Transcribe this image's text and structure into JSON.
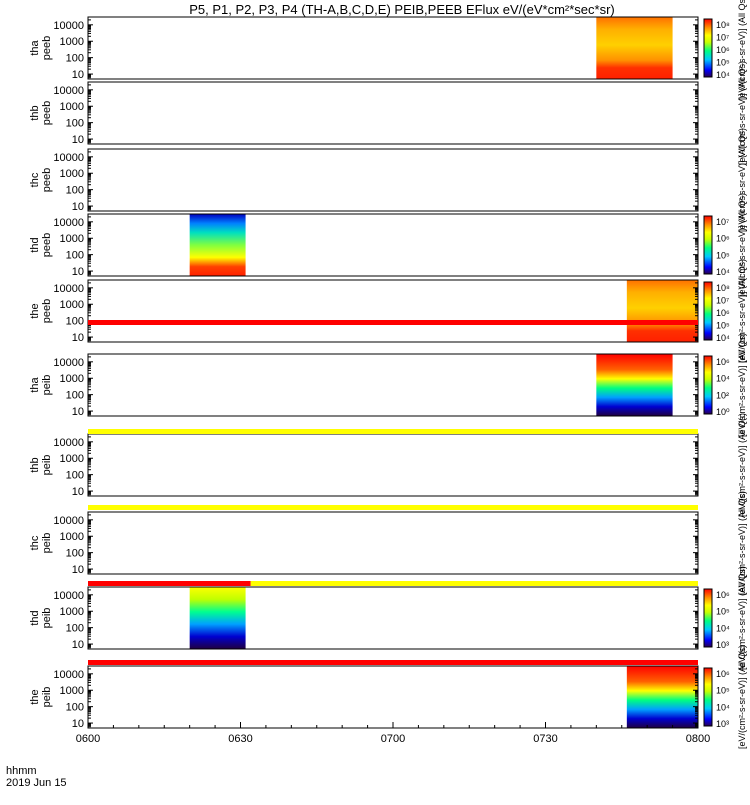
{
  "title": "P5, P1, P2, P3, P4 (TH-A,B,C,D,E) PEIB,PEEB EFlux eV/(eV*cm²*sec*sr)",
  "x_label_line1": "hhmm",
  "x_label_line2": "2019 Jun 15",
  "chart_data": {
    "type": "heatmap",
    "x_ticks": [
      "0600",
      "0630",
      "0700",
      "0730",
      "0800"
    ],
    "x_range": [
      "0600",
      "0800"
    ],
    "y_ticks": [
      "10",
      "100",
      "1000",
      "10000"
    ],
    "y_scale": "log",
    "y_range": [
      5,
      30000
    ],
    "panels": [
      {
        "probe": "thA",
        "label": "tha\npeeb",
        "data_start": "0740",
        "data_end": "0755",
        "colorbar": {
          "ticks": [
            "10⁸",
            "10⁷",
            "10⁶",
            "10⁵",
            "10⁴"
          ],
          "label": "[eV/(cm²-s-sr-eV)] (All Qs)"
        }
      },
      {
        "probe": "thB",
        "label": "thb\npeeb",
        "colorbar": {
          "ticks": [],
          "label": "[eV/(cm²-s-sr-eV)] (All Qs)"
        }
      },
      {
        "probe": "thC",
        "label": "thc\npeeb",
        "colorbar": {
          "ticks": [],
          "label": "[eV/(cm²-s-sr-eV)] (All Qs)"
        }
      },
      {
        "probe": "thD",
        "label": "thd\npeeb",
        "data_start": "0620",
        "data_end": "0631",
        "colorbar": {
          "ticks": [
            "10⁷",
            "10⁶",
            "10⁵",
            "10⁴"
          ],
          "label": "[eV/(cm²-s-sr-eV)] (All Qs)"
        }
      },
      {
        "probe": "thE",
        "label": "the\npeeb",
        "data_start": "0746",
        "data_end": "0800",
        "colorbar": {
          "ticks": [
            "10⁸",
            "10⁷",
            "10⁶",
            "10⁵",
            "10⁴"
          ],
          "label": "[eV/(cm²-s-sr-eV)] (All Qs)"
        }
      },
      {
        "probe": "thA",
        "label": "tha\npeib",
        "data_start": "0740",
        "data_end": "0755",
        "colorbar": {
          "ticks": [
            "10⁶",
            "10⁴",
            "10²",
            "10⁰"
          ],
          "label": "[eV/(cm²-s-sr-eV)] (All Qs)"
        }
      },
      {
        "probe": "thB",
        "label": "thb\npeib",
        "colorbar": {
          "ticks": [],
          "label": "[eV/(cm²-s-sr-eV)] (All Qs)"
        }
      },
      {
        "probe": "thC",
        "label": "thc\npeib",
        "colorbar": {
          "ticks": [],
          "label": "[eV/(cm²-s-sr-eV)] (All Qs)"
        }
      },
      {
        "probe": "thD",
        "label": "thd\npeib",
        "data_start": "0620",
        "data_end": "0631",
        "colorbar": {
          "ticks": [
            "10⁶",
            "10⁵",
            "10⁴",
            "10³"
          ],
          "label": "[eV/(cm²-s-sr-eV)] (All Qs)"
        }
      },
      {
        "probe": "thE",
        "label": "the\npeib",
        "data_start": "0746",
        "data_end": "0800",
        "colorbar": {
          "ticks": [
            "10⁶",
            "10⁵",
            "10⁴",
            "10³"
          ],
          "label": "[eV/(cm²-s-sr-eV)] (All Qs)"
        }
      }
    ],
    "status_bars": [
      {
        "segments": [
          {
            "start": "0600",
            "end": "0800",
            "color": "#ff0000"
          }
        ]
      },
      {
        "segments": [
          {
            "start": "0600",
            "end": "0800",
            "color": "#ffff00"
          }
        ]
      },
      {
        "segments": [
          {
            "start": "0600",
            "end": "0800",
            "color": "#ffff00"
          }
        ]
      },
      {
        "segments": [
          {
            "start": "0600",
            "end": "0632",
            "color": "#ff0000"
          },
          {
            "start": "0632",
            "end": "0800",
            "color": "#ffff00"
          }
        ]
      },
      {
        "segments": [
          {
            "start": "0600",
            "end": "0800",
            "color": "#ff0000"
          }
        ]
      }
    ]
  }
}
